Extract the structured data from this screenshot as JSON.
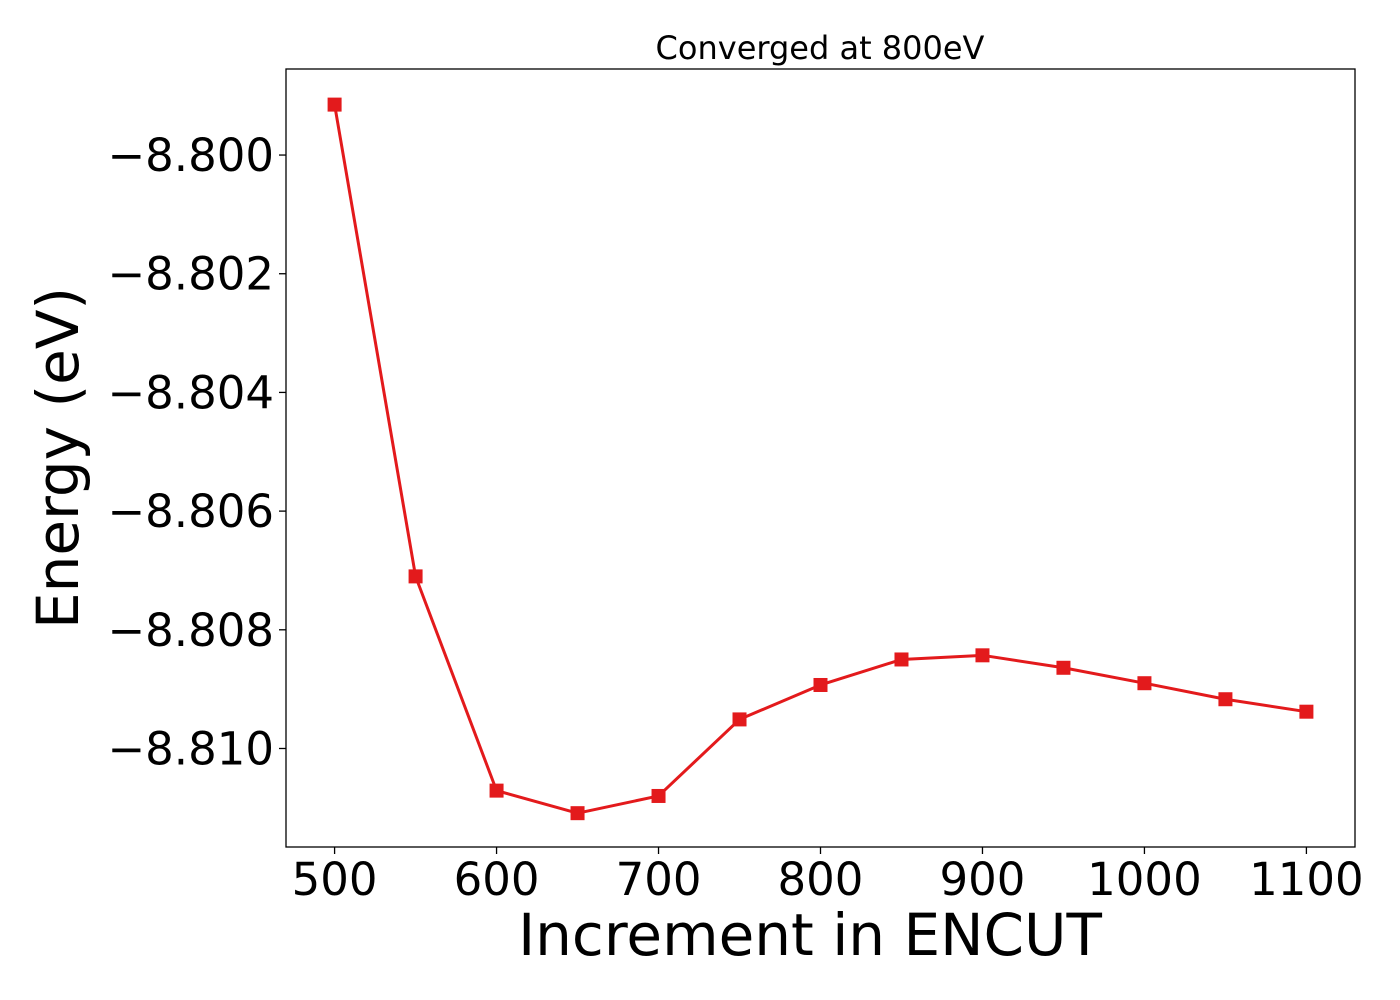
{
  "chart_data": {
    "type": "line",
    "title": "Converged at 800eV",
    "xlabel": "Increment in ENCUT",
    "ylabel": "Energy (eV)",
    "x": [
      500,
      550,
      600,
      650,
      700,
      750,
      800,
      850,
      900,
      950,
      1000,
      1050,
      1100
    ],
    "series": [
      {
        "color": "#e31a1c",
        "marker": "square",
        "values": [
          -8.79915,
          -8.8071,
          -8.81071,
          -8.81109,
          -8.8108,
          -8.80951,
          -8.80893,
          -8.8085,
          -8.80843,
          -8.80864,
          -8.8089,
          -8.80917,
          -8.80938
        ]
      }
    ],
    "xlim": [
      470,
      1130
    ],
    "ylim": [
      -8.81166,
      -8.79855
    ],
    "xticks": [
      500,
      600,
      700,
      800,
      900,
      1000,
      1100
    ],
    "xtick_labels": [
      "500",
      "600",
      "700",
      "800",
      "900",
      "1000",
      "1100"
    ],
    "yticks": [
      -8.8,
      -8.802,
      -8.804,
      -8.806,
      -8.808,
      -8.81
    ],
    "ytick_labels": [
      "−8.800",
      "−8.802",
      "−8.804",
      "−8.806",
      "−8.808",
      "−8.810"
    ],
    "grid": false,
    "legend": "none"
  }
}
